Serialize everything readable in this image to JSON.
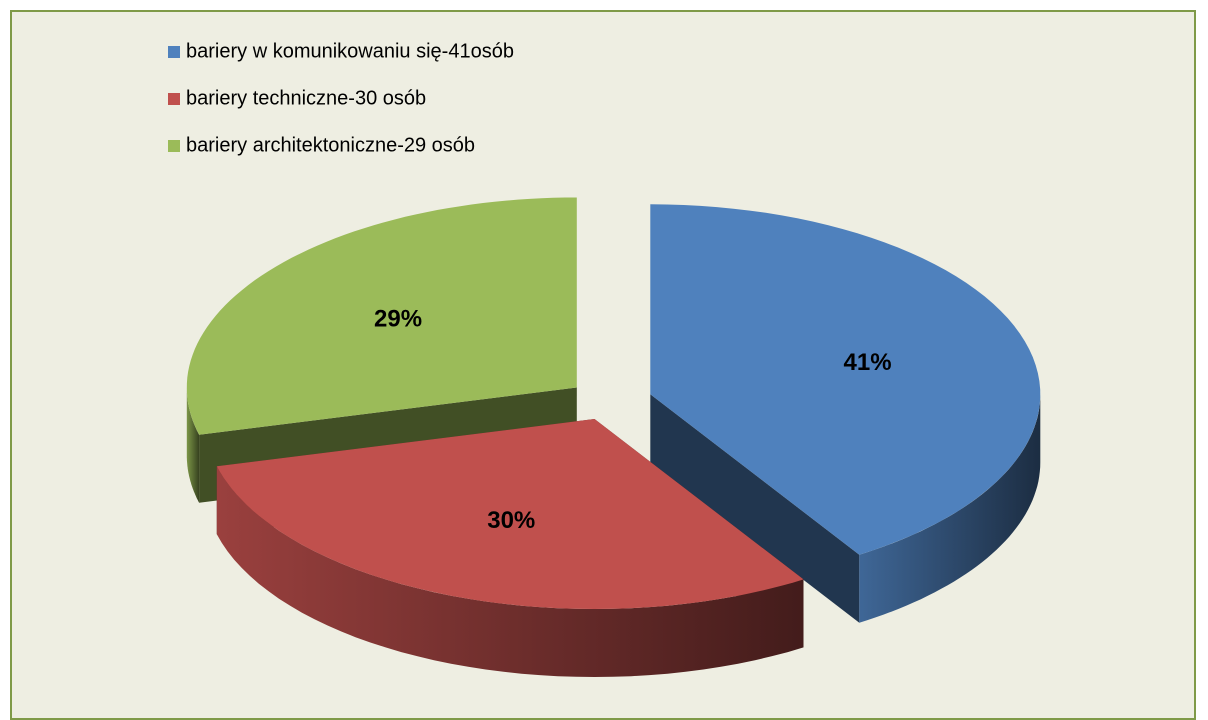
{
  "chart_data": {
    "type": "pie",
    "categories": [
      "bariery w komunikowaniu się-41osób",
      "bariery techniczne-30 osób",
      "bariery architektoniczne-29 osób"
    ],
    "values": [
      41,
      30,
      29
    ],
    "value_labels": [
      "41%",
      "30%",
      "29%"
    ],
    "colors": [
      "#4f81bd",
      "#c0504d",
      "#9bbb59"
    ],
    "legend": "top-left"
  }
}
